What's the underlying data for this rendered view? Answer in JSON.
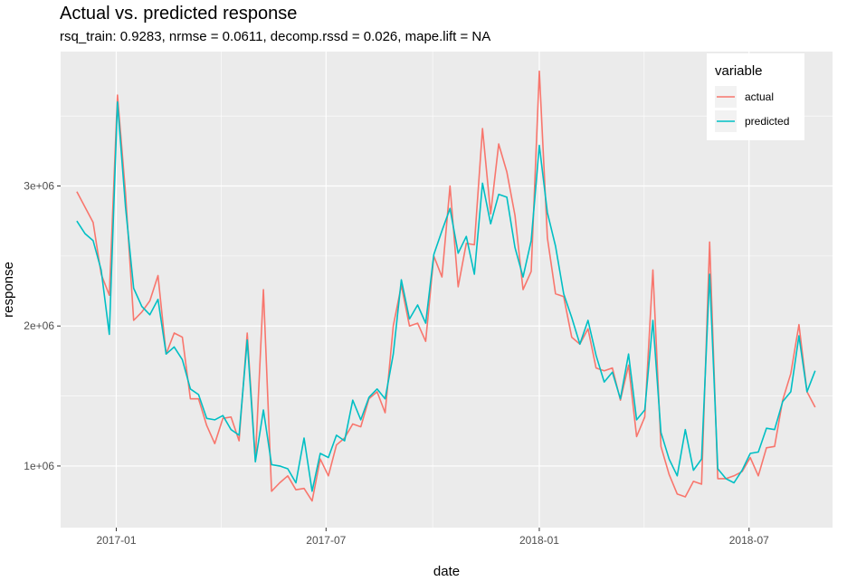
{
  "chart_data": {
    "type": "line",
    "title": "Actual vs. predicted response",
    "subtitle": "rsq_train: 0.9283, nrmse = 0.0611, decomp.rssd = 0.026, mape.lift = NA",
    "xlabel": "date",
    "ylabel": "response",
    "x_ticks": [
      "2017-01",
      "2017-07",
      "2018-01",
      "2018-07"
    ],
    "y_ticks": [
      "1e+06",
      "2e+06",
      "3e+06"
    ],
    "ylim": [
      560000,
      3960000
    ],
    "xlim": [
      "2016-11-14",
      "2018-09-11"
    ],
    "grid": true,
    "legend": {
      "title": "variable",
      "position": "top-right"
    },
    "colors": {
      "actual": "#F8766D",
      "predicted": "#00BFC4",
      "panel": "#EBEBEB",
      "grid": "#ffffff"
    },
    "x": [
      "2016-11-28",
      "2016-12-05",
      "2016-12-12",
      "2016-12-19",
      "2016-12-26",
      "2017-01-02",
      "2017-01-09",
      "2017-01-16",
      "2017-01-23",
      "2017-01-30",
      "2017-02-06",
      "2017-02-13",
      "2017-02-20",
      "2017-02-27",
      "2017-03-06",
      "2017-03-13",
      "2017-03-20",
      "2017-03-27",
      "2017-04-03",
      "2017-04-10",
      "2017-04-17",
      "2017-04-24",
      "2017-05-01",
      "2017-05-08",
      "2017-05-15",
      "2017-05-22",
      "2017-05-29",
      "2017-06-05",
      "2017-06-12",
      "2017-06-19",
      "2017-06-26",
      "2017-07-03",
      "2017-07-10",
      "2017-07-17",
      "2017-07-24",
      "2017-07-31",
      "2017-08-07",
      "2017-08-14",
      "2017-08-21",
      "2017-08-28",
      "2017-09-04",
      "2017-09-11",
      "2017-09-18",
      "2017-09-25",
      "2017-10-02",
      "2017-10-09",
      "2017-10-16",
      "2017-10-23",
      "2017-10-30",
      "2017-11-06",
      "2017-11-13",
      "2017-11-20",
      "2017-11-27",
      "2017-12-04",
      "2017-12-11",
      "2017-12-18",
      "2017-12-25",
      "2018-01-01",
      "2018-01-08",
      "2018-01-15",
      "2018-01-22",
      "2018-01-29",
      "2018-02-05",
      "2018-02-12",
      "2018-02-19",
      "2018-02-26",
      "2018-03-05",
      "2018-03-12",
      "2018-03-19",
      "2018-03-26",
      "2018-04-02",
      "2018-04-09",
      "2018-04-16",
      "2018-04-23",
      "2018-04-30",
      "2018-05-07",
      "2018-05-14",
      "2018-05-21",
      "2018-05-28",
      "2018-06-04",
      "2018-06-11",
      "2018-06-18",
      "2018-06-25",
      "2018-07-02",
      "2018-07-09",
      "2018-07-16",
      "2018-07-23",
      "2018-07-30",
      "2018-08-06",
      "2018-08-13",
      "2018-08-20",
      "2018-08-27"
    ],
    "series": [
      {
        "name": "actual",
        "values": [
          2960000,
          2850000,
          2740000,
          2370000,
          2220000,
          3650000,
          2950000,
          2040000,
          2100000,
          2180000,
          2360000,
          1800000,
          1950000,
          1920000,
          1480000,
          1480000,
          1290000,
          1160000,
          1340000,
          1350000,
          1180000,
          1950000,
          1040000,
          2260000,
          820000,
          880000,
          930000,
          830000,
          840000,
          750000,
          1050000,
          930000,
          1150000,
          1200000,
          1300000,
          1280000,
          1480000,
          1530000,
          1380000,
          2000000,
          2290000,
          2000000,
          2020000,
          1890000,
          2500000,
          2350000,
          3000000,
          2280000,
          2590000,
          2580000,
          3410000,
          2800000,
          3300000,
          3100000,
          2790000,
          2260000,
          2390000,
          3820000,
          2630000,
          2230000,
          2210000,
          1920000,
          1870000,
          1980000,
          1700000,
          1680000,
          1700000,
          1470000,
          1720000,
          1210000,
          1350000,
          2400000,
          1140000,
          940000,
          800000,
          780000,
          890000,
          870000,
          2600000,
          910000,
          910000,
          930000,
          960000,
          1060000,
          930000,
          1130000,
          1140000,
          1470000,
          1660000,
          2010000,
          1530000,
          1420000
        ]
      },
      {
        "name": "predicted",
        "values": [
          2750000,
          2660000,
          2610000,
          2400000,
          1940000,
          3600000,
          2850000,
          2270000,
          2140000,
          2080000,
          2190000,
          1800000,
          1850000,
          1760000,
          1550000,
          1510000,
          1340000,
          1330000,
          1360000,
          1260000,
          1220000,
          1900000,
          1030000,
          1400000,
          1010000,
          1000000,
          980000,
          880000,
          1200000,
          820000,
          1090000,
          1060000,
          1220000,
          1180000,
          1470000,
          1330000,
          1490000,
          1550000,
          1480000,
          1800000,
          2330000,
          2050000,
          2150000,
          2020000,
          2510000,
          2680000,
          2840000,
          2520000,
          2640000,
          2370000,
          3020000,
          2730000,
          2940000,
          2920000,
          2560000,
          2350000,
          2610000,
          3290000,
          2810000,
          2570000,
          2230000,
          2060000,
          1870000,
          2040000,
          1790000,
          1600000,
          1670000,
          1480000,
          1800000,
          1330000,
          1400000,
          2040000,
          1240000,
          1050000,
          930000,
          1260000,
          970000,
          1050000,
          2370000,
          980000,
          910000,
          880000,
          970000,
          1090000,
          1100000,
          1270000,
          1260000,
          1460000,
          1530000,
          1930000,
          1530000,
          1680000
        ]
      }
    ]
  }
}
